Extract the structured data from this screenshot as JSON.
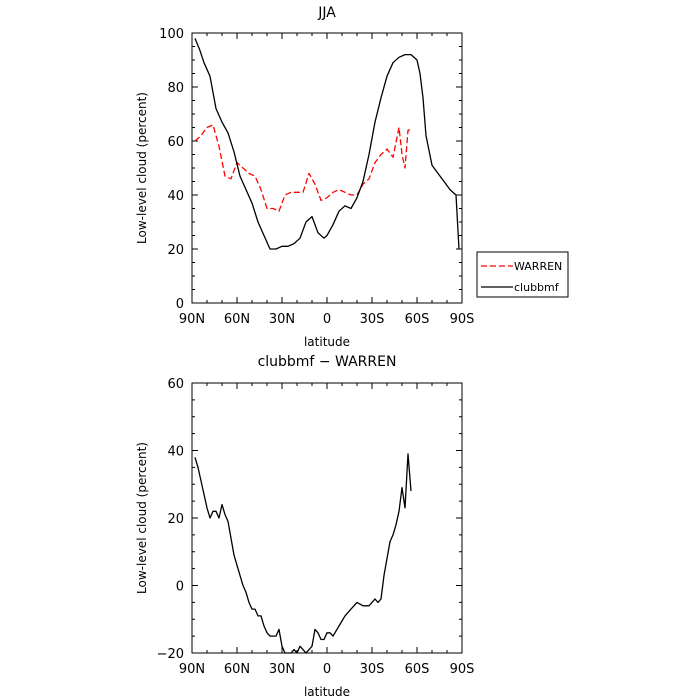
{
  "chart_data": [
    {
      "type": "line",
      "title": "JJA",
      "xlabel": "latitude",
      "ylabel": "Low-level cloud (percent)",
      "xlim": [
        90,
        -90
      ],
      "ylim": [
        0,
        100
      ],
      "x_ticks": [
        90,
        60,
        30,
        0,
        -30,
        -60,
        -90
      ],
      "x_tick_labels": [
        "90N",
        "60N",
        "30N",
        "0",
        "30S",
        "60S",
        "90S"
      ],
      "y_ticks": [
        0,
        20,
        40,
        60,
        80,
        100
      ],
      "y_tick_labels": [
        "0",
        "20",
        "40",
        "60",
        "80",
        "100"
      ],
      "legend_position": "right",
      "series": [
        {
          "name": "WARREN",
          "color": "#ff0000",
          "dash": "dashed",
          "x": [
            88,
            84,
            80,
            76,
            72,
            68,
            64,
            60,
            56,
            52,
            48,
            44,
            40,
            36,
            32,
            28,
            24,
            20,
            16,
            12,
            8,
            4,
            0,
            -4,
            -8,
            -12,
            -16,
            -20,
            -24,
            -28,
            -32,
            -36,
            -40,
            -44,
            -48,
            -50,
            -52,
            -54,
            -56
          ],
          "y": [
            60,
            62,
            65,
            66,
            58,
            47,
            46,
            52,
            50,
            48,
            47,
            42,
            35,
            35,
            34,
            40,
            41,
            41,
            41,
            48,
            44,
            38,
            39,
            41,
            42,
            41,
            40,
            40,
            44,
            46,
            52,
            55,
            57,
            54,
            65,
            55,
            50,
            64,
            64
          ]
        },
        {
          "name": "clubbmf",
          "color": "#000000",
          "dash": "solid",
          "x": [
            88,
            85,
            82,
            78,
            74,
            70,
            66,
            62,
            58,
            54,
            50,
            46,
            42,
            38,
            34,
            30,
            26,
            22,
            18,
            14,
            10,
            6,
            2,
            0,
            -2,
            -4,
            -8,
            -12,
            -16,
            -20,
            -24,
            -28,
            -32,
            -36,
            -40,
            -44,
            -48,
            -52,
            -56,
            -60,
            -62,
            -64,
            -66,
            -70,
            -74,
            -78,
            -82,
            -86,
            -88
          ],
          "y": [
            98,
            94,
            89,
            84,
            72,
            67,
            63,
            56,
            47,
            42,
            37,
            30,
            25,
            20,
            20,
            21,
            21,
            22,
            24,
            30,
            32,
            26,
            24,
            25,
            27,
            29,
            34,
            36,
            35,
            39,
            45,
            55,
            67,
            76,
            84,
            89,
            91,
            92,
            92,
            90,
            85,
            76,
            62,
            51,
            48,
            45,
            42,
            40,
            20
          ]
        }
      ]
    },
    {
      "type": "line",
      "title": "clubbmf − WARREN",
      "xlabel": "latitude",
      "ylabel": "Low-level cloud (percent)",
      "xlim": [
        90,
        -90
      ],
      "ylim": [
        -20,
        60
      ],
      "x_ticks": [
        90,
        60,
        30,
        0,
        -30,
        -60,
        -90
      ],
      "x_tick_labels": [
        "90N",
        "60N",
        "30N",
        "0",
        "30S",
        "60S",
        "90S"
      ],
      "y_ticks": [
        -20,
        0,
        20,
        40,
        60
      ],
      "y_tick_labels": [
        "−20",
        "0",
        "20",
        "40",
        "60"
      ],
      "series": [
        {
          "color": "#000000",
          "dash": "solid",
          "x": [
            88,
            86,
            84,
            82,
            80,
            78,
            76,
            74,
            72,
            70,
            68,
            66,
            64,
            62,
            60,
            58,
            56,
            54,
            52,
            50,
            48,
            46,
            44,
            42,
            40,
            38,
            36,
            34,
            32,
            30,
            28,
            26,
            24,
            22,
            20,
            18,
            16,
            14,
            12,
            10,
            8,
            6,
            4,
            2,
            0,
            -2,
            -4,
            -8,
            -12,
            -16,
            -20,
            -24,
            -26,
            -28,
            -30,
            -32,
            -34,
            -36,
            -38,
            -40,
            -42,
            -44,
            -46,
            -48,
            -50,
            -52,
            -54,
            -56
          ],
          "y": [
            38,
            35,
            31,
            27,
            23,
            20,
            22,
            22,
            20,
            24,
            21,
            19,
            14,
            9,
            6,
            3,
            0,
            -2,
            -5,
            -7,
            -7,
            -9,
            -9,
            -12,
            -14,
            -15,
            -15,
            -15,
            -13,
            -18,
            -20,
            -20,
            -20,
            -19,
            -20,
            -18,
            -19,
            -20,
            -19,
            -18,
            -13,
            -14,
            -16,
            -16,
            -14,
            -14,
            -15,
            -12,
            -9,
            -7,
            -5,
            -6,
            -6,
            -6,
            -5,
            -4,
            -5,
            -4,
            3,
            8,
            13,
            15,
            18,
            22,
            29,
            23,
            39,
            28
          ]
        }
      ]
    }
  ]
}
